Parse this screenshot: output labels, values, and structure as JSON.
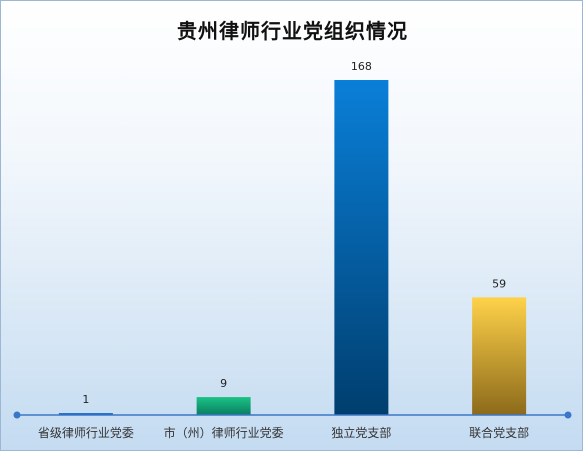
{
  "chart_data": {
    "type": "bar",
    "title": "贵州律师行业党组织情况",
    "categories": [
      "省级律师行业党委",
      "市（州）律师行业党委",
      "独立党支部",
      "联合党支部"
    ],
    "values": [
      1,
      9,
      168,
      59
    ],
    "bar_colors": [
      [
        "#2a7fd8",
        "#0f4f9a"
      ],
      [
        "#1cc486",
        "#0a7d62"
      ],
      [
        "#0a7fd8",
        "#003e6e"
      ],
      [
        "#ffd24a",
        "#8c6a1a"
      ]
    ],
    "axis_color": "#3a77c8",
    "ylim": [
      0,
      168
    ],
    "grid": false,
    "legend": "none"
  }
}
